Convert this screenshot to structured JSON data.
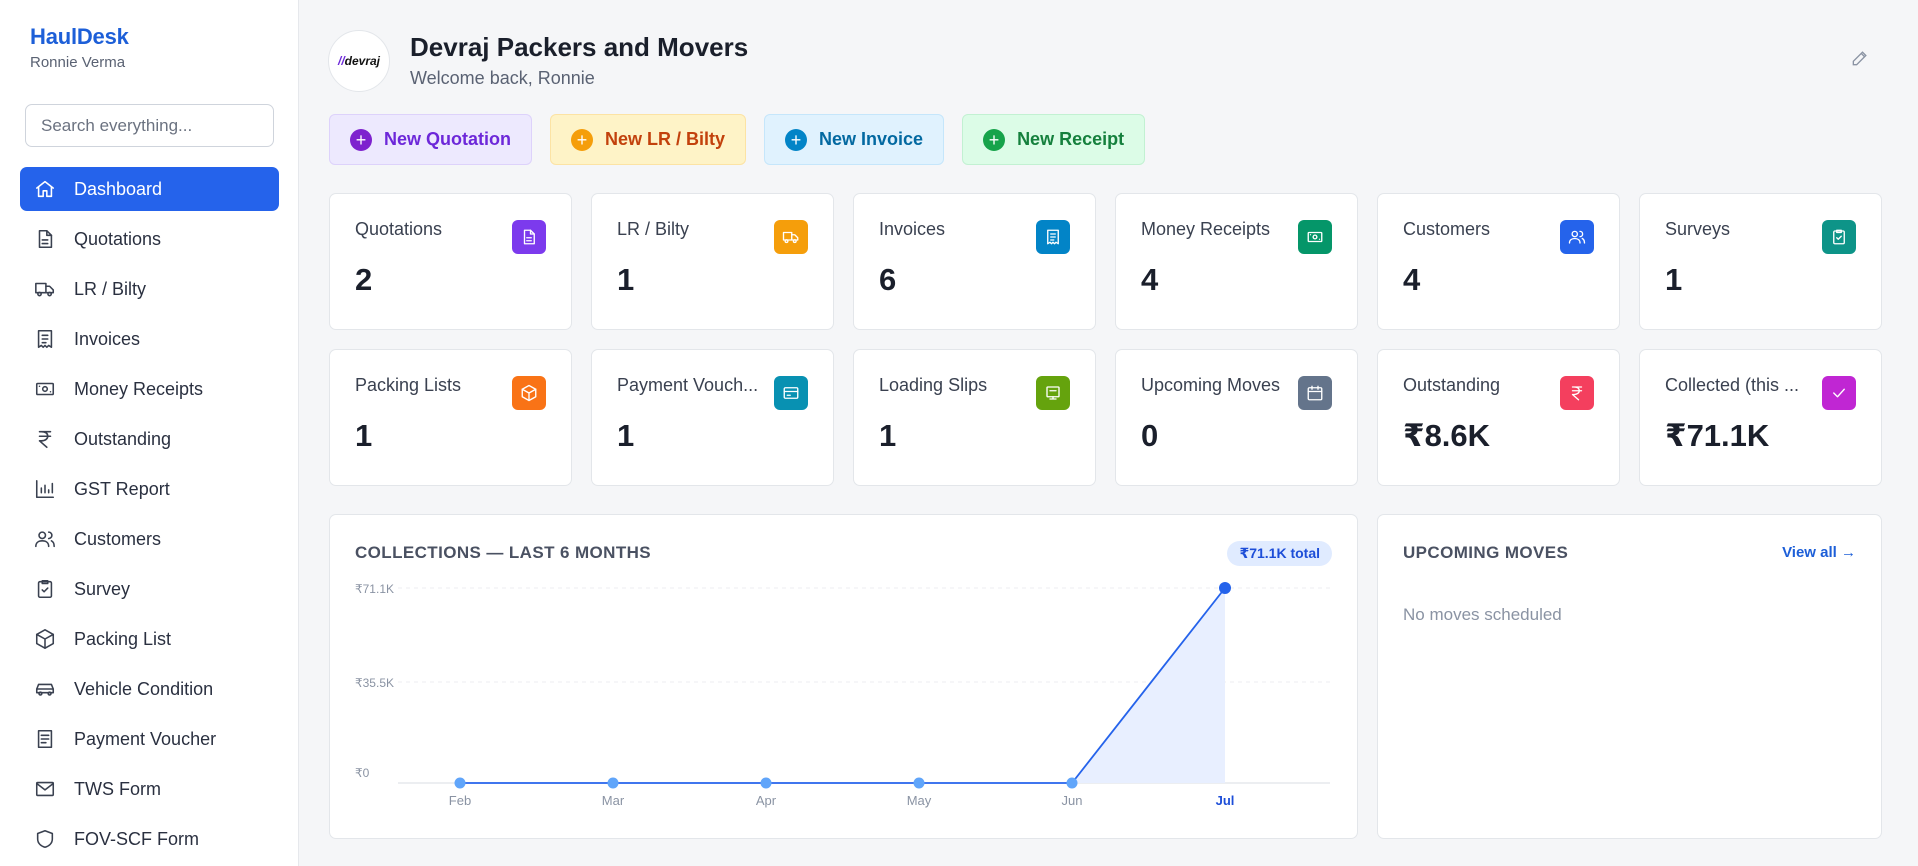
{
  "sidebar": {
    "brand": "HaulDesk",
    "user": "Ronnie Verma",
    "search_placeholder": "Search everything...",
    "items": [
      {
        "label": "Dashboard",
        "icon": "home-icon",
        "active": true
      },
      {
        "label": "Quotations",
        "icon": "document-icon"
      },
      {
        "label": "LR / Bilty",
        "icon": "truck-icon"
      },
      {
        "label": "Invoices",
        "icon": "receipt-icon"
      },
      {
        "label": "Money Receipts",
        "icon": "banknote-icon"
      },
      {
        "label": "Outstanding",
        "icon": "rupee-icon"
      },
      {
        "label": "GST Report",
        "icon": "bar-chart-icon"
      },
      {
        "label": "Customers",
        "icon": "users-icon"
      },
      {
        "label": "Survey",
        "icon": "clipboard-check-icon"
      },
      {
        "label": "Packing List",
        "icon": "box-icon"
      },
      {
        "label": "Vehicle Condition",
        "icon": "car-icon"
      },
      {
        "label": "Payment Voucher",
        "icon": "voucher-icon"
      },
      {
        "label": "TWS Form",
        "icon": "mail-icon"
      },
      {
        "label": "FOV-SCF Form",
        "icon": "shield-icon"
      }
    ]
  },
  "header": {
    "logo_text": "devraj",
    "company": "Devraj Packers and Movers",
    "welcome": "Welcome back, Ronnie"
  },
  "actions": [
    {
      "label": "New Quotation",
      "color": "purple"
    },
    {
      "label": "New LR / Bilty",
      "color": "orange"
    },
    {
      "label": "New Invoice",
      "color": "blue"
    },
    {
      "label": "New Receipt",
      "color": "green"
    }
  ],
  "stats": [
    {
      "label": "Quotations",
      "value": "2",
      "icon": "document-icon",
      "color": "#7c3aed"
    },
    {
      "label": "LR / Bilty",
      "value": "1",
      "icon": "truck-icon",
      "color": "#f59e0b"
    },
    {
      "label": "Invoices",
      "value": "6",
      "icon": "receipt-icon",
      "color": "#0284c7"
    },
    {
      "label": "Money Receipts",
      "value": "4",
      "icon": "banknote-icon",
      "color": "#059669"
    },
    {
      "label": "Customers",
      "value": "4",
      "icon": "users-icon",
      "color": "#2563eb"
    },
    {
      "label": "Surveys",
      "value": "1",
      "icon": "clipboard-check-icon",
      "color": "#0d9488"
    },
    {
      "label": "Packing Lists",
      "value": "1",
      "icon": "box-icon",
      "color": "#f97316"
    },
    {
      "label": "Payment Vouch...",
      "value": "1",
      "icon": "card-icon",
      "color": "#0891b2"
    },
    {
      "label": "Loading Slips",
      "value": "1",
      "icon": "slip-icon",
      "color": "#65a30d"
    },
    {
      "label": "Upcoming Moves",
      "value": "0",
      "icon": "calendar-icon",
      "color": "#64748b"
    },
    {
      "label": "Outstanding",
      "value": "₹8.6K",
      "icon": "rupee-icon",
      "color": "#f43f5e"
    },
    {
      "label": "Collected (this ...",
      "value": "₹71.1K",
      "icon": "check-icon",
      "color": "#c026d3"
    }
  ],
  "collections": {
    "title": "COLLECTIONS — LAST 6 MONTHS",
    "total_badge": "₹71.1K total"
  },
  "upcoming": {
    "title": "UPCOMING MOVES",
    "view_all": "View all →",
    "empty": "No moves scheduled"
  },
  "chart_data": {
    "type": "area",
    "title": "COLLECTIONS — LAST 6 MONTHS",
    "categories": [
      "Feb",
      "Mar",
      "Apr",
      "May",
      "Jun",
      "Jul"
    ],
    "values": [
      0,
      0,
      0,
      0,
      0,
      71100
    ],
    "ylim": [
      0,
      71100
    ],
    "yticks": [
      0,
      35550,
      71100
    ],
    "ytick_labels": [
      "₹0",
      "₹35.5K",
      "₹71.1K"
    ],
    "highlight_category": "Jul",
    "line_color": "#2563eb",
    "fill_color": "#e8efff",
    "grid": true
  }
}
